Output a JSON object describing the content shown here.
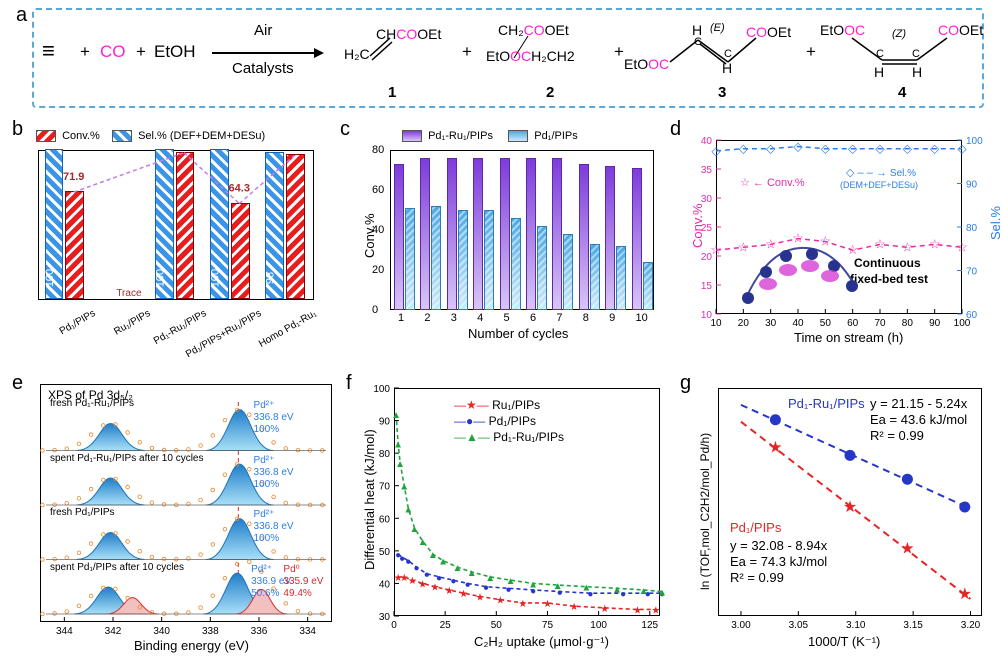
{
  "figure_bg": "#ffffff",
  "panelA": {
    "reactants": {
      "alkyne": "HC≡CH",
      "co": "CO",
      "ethanol": "EtOH"
    },
    "arrow_top": "Air",
    "arrow_bottom": "Catalysts",
    "products": [
      {
        "n": "1",
        "top": "CH",
        "top_co": "CO",
        "top_rest": "OEt",
        "bottom": "H₂C",
        "style": "acrylate"
      },
      {
        "n": "2",
        "top": "CH₂",
        "top_co": "CO",
        "top_rest": "OEt",
        "bottom_pre": "EtO",
        "bottom_co": "OC",
        "bottom_rest": "H₂CH2"
      },
      {
        "n": "3",
        "isomer": "(E)",
        "top_co": "CO",
        "top_rest": "OEt",
        "bottom_pre": "EtO",
        "bottom_co": "OC"
      },
      {
        "n": "4",
        "isomer": "(Z)",
        "top_pre": "EtO",
        "top_co": "OC",
        "top_co2": "CO",
        "top_rest2": "OEt"
      }
    ],
    "box_border_color": "#5aa8d8"
  },
  "panelB": {
    "legend": {
      "conv": "Conv.%",
      "sel": "Sel.% (DEF+DEM+DESu)"
    },
    "ymax": 100,
    "colors": {
      "conv": "#e81e1e",
      "sel": "#3a95e8",
      "val_text": "#a52a2a",
      "dash_line": "#c27ce6"
    },
    "categories": [
      "Pd₁/PIPs",
      "Ru₁/PIPs",
      "Pd₁-Ru₁/PIPs",
      "Pd₁/PIPs+Ru₁/PIPs",
      "Homo Pd₁-Ru₁"
    ],
    "conv": [
      71.9,
      null,
      98.2,
      64.3,
      96.4
    ],
    "sel": [
      100,
      null,
      100,
      100,
      98
    ],
    "sel_labels": [
      "100",
      "",
      "100",
      "100",
      "98"
    ],
    "trace_label": "Trace",
    "val_labels": [
      "71.9",
      "Trace",
      "98.2",
      "64.3",
      "96.4"
    ]
  },
  "panelC": {
    "legend": {
      "a": "Pd₁-Ru₁/PIPs",
      "b": "Pd₁/PIPs",
      "color_a": "#7e3bdb",
      "color_b": "#4aa8e5"
    },
    "xlabel": "Number of cycles",
    "ylabel": "Conv.%",
    "cycles": [
      1,
      2,
      3,
      4,
      5,
      6,
      7,
      8,
      9,
      10
    ],
    "ymax": 80,
    "ytick_step": 20,
    "series_a": [
      73,
      76,
      76,
      76,
      76,
      76,
      76,
      73,
      72,
      71
    ],
    "series_b": [
      51,
      52,
      50,
      50,
      46,
      42,
      38,
      33,
      32,
      24
    ]
  },
  "panelD": {
    "xlabel": "Time on stream (h)",
    "ylabel_left": "Conv.%",
    "ylabel_right": "Sel.%",
    "xrange": [
      10,
      100
    ],
    "xtick": 10,
    "yleft_range": [
      10,
      40
    ],
    "yleft_tick": 5,
    "yright_range": [
      60,
      100
    ],
    "yright_tick": 10,
    "colors": {
      "conv": "#e62ca8",
      "sel": "#2c7de6"
    },
    "legend": {
      "conv": "Conv.%",
      "sel": "Sel.%\n(DEM+DEF+DESu)"
    },
    "text1": "Continuous",
    "text2": "fixed-bed test",
    "times": [
      10,
      20,
      30,
      40,
      50,
      60,
      70,
      80,
      90,
      100
    ],
    "conv": [
      21,
      21.5,
      22,
      23,
      22.5,
      21,
      22,
      21.5,
      22,
      21.5
    ],
    "sel": [
      97.5,
      98,
      98,
      98.5,
      98,
      98,
      98,
      98,
      98,
      98
    ]
  },
  "panelE": {
    "title": "XPS of Pd 3d₅/₂",
    "xlabel": "Binding energy (eV)",
    "xrange": [
      345,
      333
    ],
    "xticks": [
      344,
      342,
      340,
      338,
      336,
      334
    ],
    "rows": [
      {
        "name": "fresh Pd₁-Ru₁/PIPs",
        "main": {
          "be": 336.8,
          "label": "Pd²⁺",
          "frac": "100%"
        }
      },
      {
        "name": "spent Pd₁-Ru₁/PIPs after 10 cycles",
        "main": {
          "be": 336.8,
          "label": "Pd²⁺",
          "frac": "100%"
        }
      },
      {
        "name": "fresh Pd₁/PIPs",
        "main": {
          "be": 336.8,
          "label": "Pd²⁺",
          "frac": "100%"
        }
      },
      {
        "name": "spent Pd₁/PIPs after 10 cycles",
        "main": {
          "be": 336.9,
          "label": "Pd²⁺",
          "frac": "50.6%"
        },
        "minor": {
          "be": 335.9,
          "label": "Pd⁰",
          "frac": "49.4%",
          "color": "#d72b2b"
        }
      }
    ],
    "colors": {
      "peak_fill": "#4fb5e6",
      "peak_fill2": "#1780c9",
      "text_pd2": "#2c7de6",
      "dash": "#d72b2b",
      "dots": "#e6872c"
    }
  },
  "panelF": {
    "xlabel": "C₂H₂ uptake (μmol·g⁻¹)",
    "ylabel": "Differential heat (kJ/mol)",
    "xrange": [
      0,
      130
    ],
    "xtick": 25,
    "yrange": [
      30,
      100
    ],
    "ytick": 10,
    "series": [
      {
        "name": "Ru₁/PIPs",
        "color": "#e52525",
        "marker": "star",
        "x": [
          2,
          5,
          9,
          14,
          20,
          27,
          34,
          42,
          52,
          63,
          75,
          88,
          103,
          119,
          128
        ],
        "y": [
          42,
          42,
          41,
          40,
          39,
          38,
          37,
          36,
          35,
          34,
          34,
          33,
          32.5,
          32,
          32
        ]
      },
      {
        "name": "Pd₁/PIPs",
        "color": "#2536c9",
        "marker": "circle",
        "x": [
          2,
          4,
          7,
          11,
          16,
          22,
          29,
          36,
          45,
          56,
          68,
          81,
          96,
          112,
          124,
          131
        ],
        "y": [
          49,
          48,
          47,
          45,
          43,
          42,
          41,
          40,
          39,
          38.5,
          38,
          37.5,
          37,
          37,
          37,
          37
        ]
      },
      {
        "name": "Pd₁-Ru₁/PIPs",
        "color": "#1fa43c",
        "marker": "triangle",
        "x": [
          1,
          2,
          3,
          5,
          7,
          10,
          14,
          19,
          24,
          31,
          38,
          47,
          57,
          68,
          80,
          94,
          109,
          122,
          131
        ],
        "y": [
          92,
          83,
          77,
          70,
          63,
          57,
          53,
          49,
          47,
          45,
          43.5,
          42,
          41,
          40,
          39.5,
          39,
          38.5,
          38,
          37.5
        ]
      }
    ]
  },
  "panelG": {
    "xlabel": "1000/T (K⁻¹)",
    "ylabel": "ln (TOF,mol_C2H2/mol_Pd/h)",
    "xrange": [
      2.98,
      3.21
    ],
    "xticks": [
      3.0,
      3.05,
      3.1,
      3.15,
      3.2
    ],
    "colors": {
      "pdru": "#2536c9",
      "pd": "#e52525"
    },
    "fit_pdru": {
      "label": "Pd₁-Ru₁/PIPs",
      "eq": "y = 21.15 - 5.24x",
      "Ea": "Ea = 43.6 kJ/mol",
      "R2": "R² = 0.99",
      "pts_x": [
        3.03,
        3.095,
        3.145,
        3.195
      ],
      "pts_y": [
        5.28,
        4.92,
        4.68,
        4.4
      ]
    },
    "fit_pd": {
      "label": "Pd₁/PIPs",
      "eq": "y = 32.08 - 8.94x",
      "Ea": "Ea = 74.3 kJ/mol",
      "R2": "R² = 0.99",
      "pts_x": [
        3.03,
        3.095,
        3.145,
        3.195
      ],
      "pts_y": [
        5.0,
        4.4,
        3.98,
        3.52
      ]
    },
    "yrange": [
      3.3,
      5.6
    ]
  }
}
